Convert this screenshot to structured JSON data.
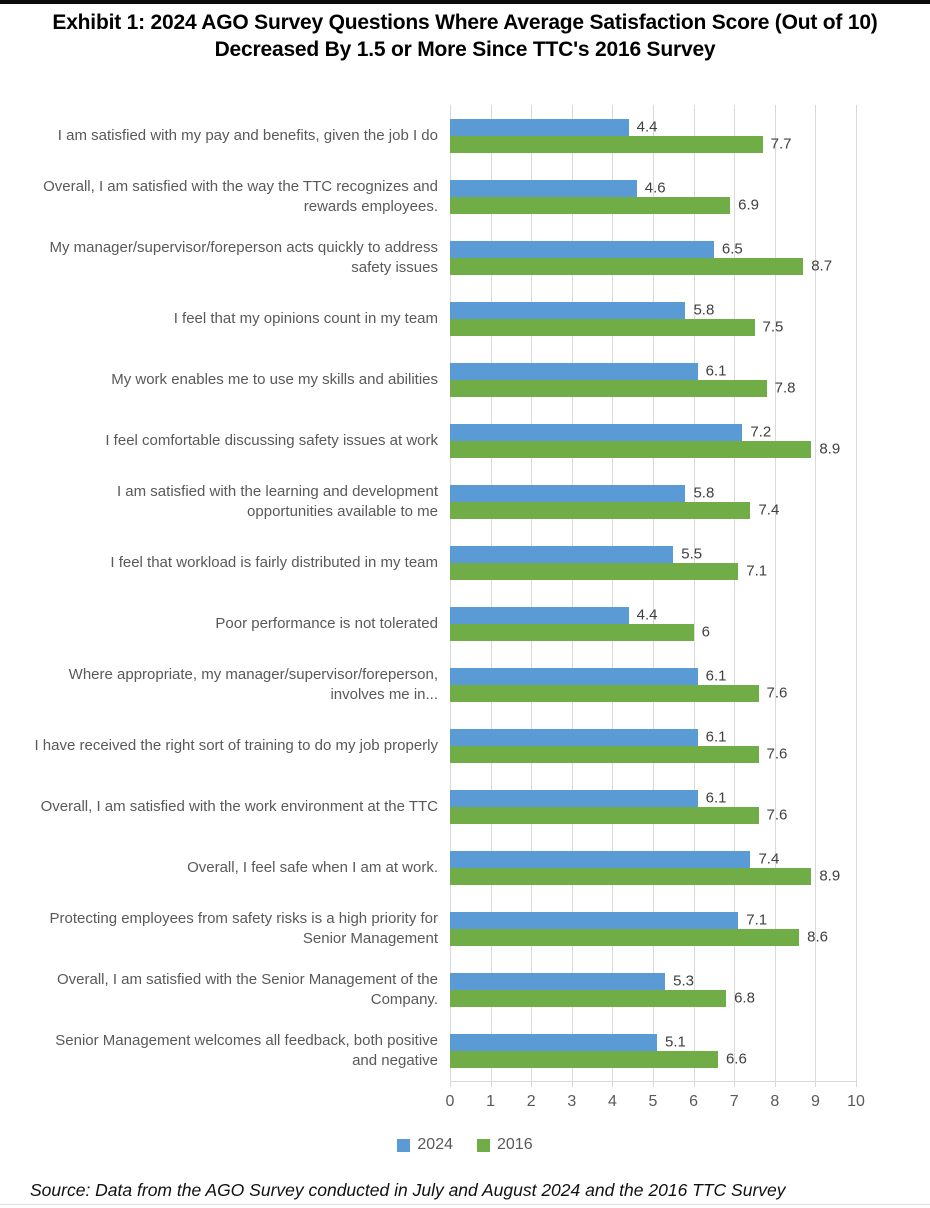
{
  "page": {
    "title": "Exhibit 1: 2024 AGO Survey Questions Where Average Satisfaction Score (Out of 10) Decreased By 1.5 or More Since TTC's 2016 Survey",
    "source_note": "Source: Data from the AGO Survey conducted in July and August 2024 and the 2016 TTC Survey"
  },
  "chart_data": {
    "type": "bar",
    "orientation": "horizontal",
    "title": "Exhibit 1: 2024 AGO Survey Questions Where Average Satisfaction Score (Out of 10) Decreased By 1.5 or More Since TTC's 2016 Survey",
    "categories": [
      "I am satisfied with my pay and benefits, given the job I do",
      "Overall, I am satisfied with the way the TTC recognizes and rewards employees.",
      "My manager/supervisor/foreperson acts quickly to address safety issues",
      "I feel that my opinions count in my team",
      "My work enables me to use my skills and abilities",
      "I feel comfortable discussing safety issues at work",
      "I am satisfied with the learning and development opportunities available to me",
      "I feel that workload is fairly distributed in my team",
      "Poor performance is not tolerated",
      "Where appropriate, my manager/supervisor/foreperson, involves me in...",
      "I have received the right sort of training to do my job properly",
      "Overall, I am satisfied with the work environment at the TTC",
      "Overall, I feel safe when I am at work.",
      "Protecting employees from safety risks is a high priority for Senior Management",
      "Overall, I am satisfied with the Senior Management of the Company.",
      "Senior Management welcomes all feedback, both positive and negative"
    ],
    "series": [
      {
        "name": "2024",
        "color": "#5B9BD5",
        "values": [
          4.4,
          4.6,
          6.5,
          5.8,
          6.1,
          7.2,
          5.8,
          5.5,
          4.4,
          6.1,
          6.1,
          6.1,
          7.4,
          7.1,
          5.3,
          5.1
        ]
      },
      {
        "name": "2016",
        "color": "#70AD47",
        "values": [
          7.7,
          6.9,
          8.7,
          7.5,
          7.8,
          8.9,
          7.4,
          7.1,
          6,
          7.6,
          7.6,
          7.6,
          8.9,
          8.6,
          6.8,
          6.6
        ]
      }
    ],
    "xlim": [
      0,
      10
    ],
    "x_ticks": [
      0,
      1,
      2,
      3,
      4,
      5,
      6,
      7,
      8,
      9,
      10
    ],
    "grid": true,
    "value_labels_shown": true,
    "legend_position": "bottom",
    "colors": {
      "gridline": "#d9d9d9",
      "axis_text": "#595959",
      "category_text": "#595959",
      "value_text": "#404040"
    }
  }
}
